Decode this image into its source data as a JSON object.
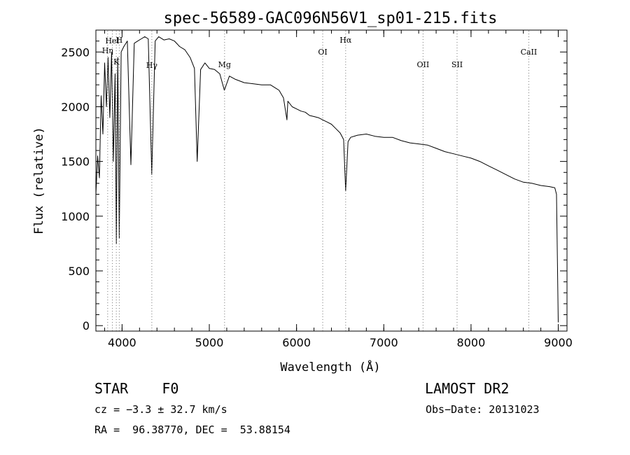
{
  "chart_data": {
    "type": "line",
    "title": "spec-56589-GAC096N56V1_sp01-215.fits",
    "xlabel": "Wavelength (Å)",
    "ylabel": "Flux (relative)",
    "xlim": [
      3700,
      9100
    ],
    "ylim": [
      -50,
      2700
    ],
    "xticks": [
      4000,
      5000,
      6000,
      7000,
      8000,
      9000
    ],
    "yticks": [
      0,
      500,
      1000,
      1500,
      2000,
      2500
    ],
    "grid": false,
    "legend": "none",
    "series": [
      {
        "x": [
          3700,
          3720,
          3740,
          3760,
          3780,
          3800,
          3820,
          3840,
          3860,
          3880,
          3900,
          3920,
          3934,
          3950,
          3968,
          3990,
          4020,
          4060,
          4101,
          4140,
          4180,
          4220,
          4260,
          4300,
          4340,
          4380,
          4420,
          4480,
          4540,
          4600,
          4660,
          4720,
          4780,
          4830,
          4861,
          4900,
          4950,
          5000,
          5060,
          5120,
          5172,
          5230,
          5300,
          5400,
          5500,
          5600,
          5700,
          5800,
          5850,
          5890,
          5900,
          5950,
          6000,
          6050,
          6100,
          6150,
          6200,
          6250,
          6300,
          6350,
          6400,
          6450,
          6500,
          6540,
          6563,
          6590,
          6620,
          6700,
          6800,
          6900,
          7000,
          7100,
          7200,
          7300,
          7400,
          7500,
          7600,
          7700,
          7800,
          7900,
          8000,
          8100,
          8200,
          8300,
          8400,
          8500,
          8600,
          8700,
          8800,
          8900,
          8960,
          8980,
          9000
        ],
        "y": [
          1200,
          1550,
          1350,
          2100,
          1750,
          2400,
          2000,
          2450,
          1900,
          2500,
          1500,
          2300,
          750,
          2450,
          800,
          2500,
          2550,
          2600,
          1470,
          2580,
          2600,
          2620,
          2640,
          2620,
          1380,
          2600,
          2640,
          2610,
          2620,
          2600,
          2550,
          2520,
          2450,
          2350,
          1500,
          2340,
          2400,
          2350,
          2340,
          2300,
          2150,
          2280,
          2250,
          2220,
          2210,
          2200,
          2200,
          2150,
          2080,
          1880,
          2050,
          2000,
          1980,
          1960,
          1950,
          1920,
          1910,
          1900,
          1880,
          1860,
          1840,
          1800,
          1760,
          1700,
          1230,
          1680,
          1720,
          1740,
          1750,
          1730,
          1720,
          1720,
          1690,
          1670,
          1660,
          1650,
          1620,
          1590,
          1570,
          1550,
          1530,
          1500,
          1460,
          1420,
          1380,
          1340,
          1310,
          1300,
          1280,
          1270,
          1260,
          1200,
          30
        ]
      }
    ],
    "lines": [
      {
        "label": "HeI",
        "x": 3889
      },
      {
        "label": "Hη",
        "x": 3835
      },
      {
        "label": "K",
        "x": 3934
      },
      {
        "label": "H",
        "x": 3968
      },
      {
        "label": "Hγ",
        "x": 4341
      },
      {
        "label": "Mg",
        "x": 5175
      },
      {
        "label": "OI",
        "x": 6300
      },
      {
        "label": "Hα",
        "x": 6563
      },
      {
        "label": "OII",
        "x": 7450
      },
      {
        "label": "SII",
        "x": 7840
      },
      {
        "label": "CaII",
        "x": 8662
      }
    ]
  },
  "info": {
    "class": "STAR",
    "subclass": "F0",
    "survey": "LAMOST DR2",
    "cz": "cz = −3.3 ± 32.7 km/s",
    "obs_date": "Obs−Date: 20131023",
    "coords": "RA =  96.38770, DEC =  53.88154"
  }
}
